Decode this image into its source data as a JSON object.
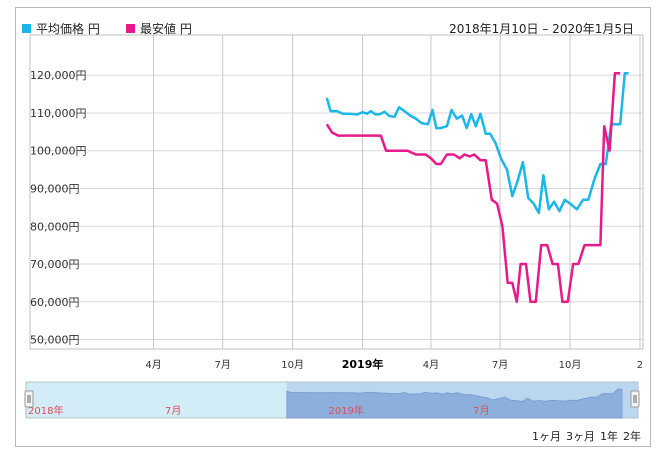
{
  "legend": [
    {
      "label": "平均価格 円",
      "color": "#1ab7ea"
    },
    {
      "label": "最安値 円",
      "color": "#e8198b"
    }
  ],
  "date_range": "2018年1月10日 – 2020年1月5日",
  "range_buttons": [
    "1ヶ月",
    "3ヶ月",
    "1年",
    "2年"
  ],
  "navigator_labels": [
    "2018年",
    "7月",
    "2019年",
    "7月"
  ],
  "chart_data": {
    "type": "line",
    "title": "",
    "xlabel": "",
    "ylabel": "",
    "x_tick_labels": [
      "4月",
      "7月",
      "10月",
      "2019年",
      "4月",
      "7月",
      "10月",
      "2"
    ],
    "y_tick_labels": [
      "50,000円",
      "60,000円",
      "70,000円",
      "80,000円",
      "90,000円",
      "100,000円",
      "110,000円",
      "120,000円"
    ],
    "ylim": [
      47500,
      128000
    ],
    "xlim": [
      "2018-01-10",
      "2020-01-05"
    ],
    "series": [
      {
        "name": "平均価格 円",
        "color": "#1ab7ea",
        "points": [
          [
            "2018-11-15",
            114000
          ],
          [
            "2018-11-20",
            110500
          ],
          [
            "2018-11-28",
            110500
          ],
          [
            "2018-12-06",
            109800
          ],
          [
            "2018-12-15",
            109800
          ],
          [
            "2018-12-25",
            109600
          ],
          [
            "2019-01-01",
            110200
          ],
          [
            "2019-01-07",
            109800
          ],
          [
            "2019-01-12",
            110500
          ],
          [
            "2019-01-18",
            109600
          ],
          [
            "2019-01-24",
            109700
          ],
          [
            "2019-01-30",
            110300
          ],
          [
            "2019-02-05",
            109200
          ],
          [
            "2019-02-12",
            109000
          ],
          [
            "2019-02-18",
            111500
          ],
          [
            "2019-02-25",
            110500
          ],
          [
            "2019-03-05",
            109300
          ],
          [
            "2019-03-12",
            108500
          ],
          [
            "2019-03-20",
            107300
          ],
          [
            "2019-03-28",
            107000
          ],
          [
            "2019-04-03",
            110800
          ],
          [
            "2019-04-08",
            106000
          ],
          [
            "2019-04-14",
            106000
          ],
          [
            "2019-04-22",
            106500
          ],
          [
            "2019-04-28",
            110800
          ],
          [
            "2019-05-05",
            108500
          ],
          [
            "2019-05-12",
            109300
          ],
          [
            "2019-05-18",
            106000
          ],
          [
            "2019-05-24",
            109700
          ],
          [
            "2019-05-30",
            106500
          ],
          [
            "2019-06-05",
            109800
          ],
          [
            "2019-06-12",
            104500
          ],
          [
            "2019-06-18",
            104500
          ],
          [
            "2019-06-25",
            102000
          ],
          [
            "2019-07-02",
            98000
          ],
          [
            "2019-07-10",
            95000
          ],
          [
            "2019-07-17",
            88000
          ],
          [
            "2019-07-24",
            92000
          ],
          [
            "2019-07-31",
            97000
          ],
          [
            "2019-08-07",
            87500
          ],
          [
            "2019-08-14",
            86000
          ],
          [
            "2019-08-21",
            83500
          ],
          [
            "2019-08-27",
            93500
          ],
          [
            "2019-09-03",
            84500
          ],
          [
            "2019-09-10",
            86500
          ],
          [
            "2019-09-17",
            84000
          ],
          [
            "2019-09-24",
            87000
          ],
          [
            "2019-10-01",
            86000
          ],
          [
            "2019-10-10",
            84500
          ],
          [
            "2019-10-18",
            87000
          ],
          [
            "2019-10-25",
            87000
          ],
          [
            "2019-11-02",
            92500
          ],
          [
            "2019-11-10",
            96500
          ],
          [
            "2019-11-17",
            96500
          ],
          [
            "2019-11-24",
            107000
          ],
          [
            "2019-12-01",
            107000
          ],
          [
            "2019-12-06",
            107000
          ],
          [
            "2019-12-12",
            120500
          ],
          [
            "2019-12-17",
            120500
          ]
        ]
      },
      {
        "name": "最安値 円",
        "color": "#e8198b",
        "points": [
          [
            "2018-11-15",
            107000
          ],
          [
            "2018-11-22",
            104800
          ],
          [
            "2018-11-30",
            104000
          ],
          [
            "2018-12-10",
            104000
          ],
          [
            "2018-12-25",
            104000
          ],
          [
            "2019-01-10",
            104000
          ],
          [
            "2019-01-25",
            104000
          ],
          [
            "2019-02-01",
            100000
          ],
          [
            "2019-02-15",
            100000
          ],
          [
            "2019-03-01",
            100000
          ],
          [
            "2019-03-12",
            99000
          ],
          [
            "2019-03-25",
            99000
          ],
          [
            "2019-04-01",
            98000
          ],
          [
            "2019-04-08",
            96500
          ],
          [
            "2019-04-14",
            96500
          ],
          [
            "2019-04-22",
            99000
          ],
          [
            "2019-05-01",
            99000
          ],
          [
            "2019-05-09",
            98000
          ],
          [
            "2019-05-15",
            99000
          ],
          [
            "2019-05-22",
            98500
          ],
          [
            "2019-05-28",
            99000
          ],
          [
            "2019-06-05",
            97500
          ],
          [
            "2019-06-12",
            97500
          ],
          [
            "2019-06-20",
            87000
          ],
          [
            "2019-06-27",
            86000
          ],
          [
            "2019-07-04",
            80000
          ],
          [
            "2019-07-11",
            65000
          ],
          [
            "2019-07-17",
            65000
          ],
          [
            "2019-07-23",
            60000
          ],
          [
            "2019-07-28",
            70000
          ],
          [
            "2019-08-04",
            70000
          ],
          [
            "2019-08-10",
            60000
          ],
          [
            "2019-08-17",
            60000
          ],
          [
            "2019-08-24",
            75000
          ],
          [
            "2019-09-01",
            75000
          ],
          [
            "2019-09-08",
            70000
          ],
          [
            "2019-09-15",
            70000
          ],
          [
            "2019-09-21",
            60000
          ],
          [
            "2019-09-28",
            60000
          ],
          [
            "2019-10-05",
            70000
          ],
          [
            "2019-10-12",
            70000
          ],
          [
            "2019-10-20",
            75000
          ],
          [
            "2019-10-27",
            75000
          ],
          [
            "2019-11-03",
            75000
          ],
          [
            "2019-11-10",
            75000
          ],
          [
            "2019-11-15",
            106500
          ],
          [
            "2019-11-22",
            100000
          ],
          [
            "2019-11-29",
            120500
          ],
          [
            "2019-12-06",
            120500
          ]
        ]
      }
    ],
    "grid": true,
    "legend_position": "top-left"
  }
}
